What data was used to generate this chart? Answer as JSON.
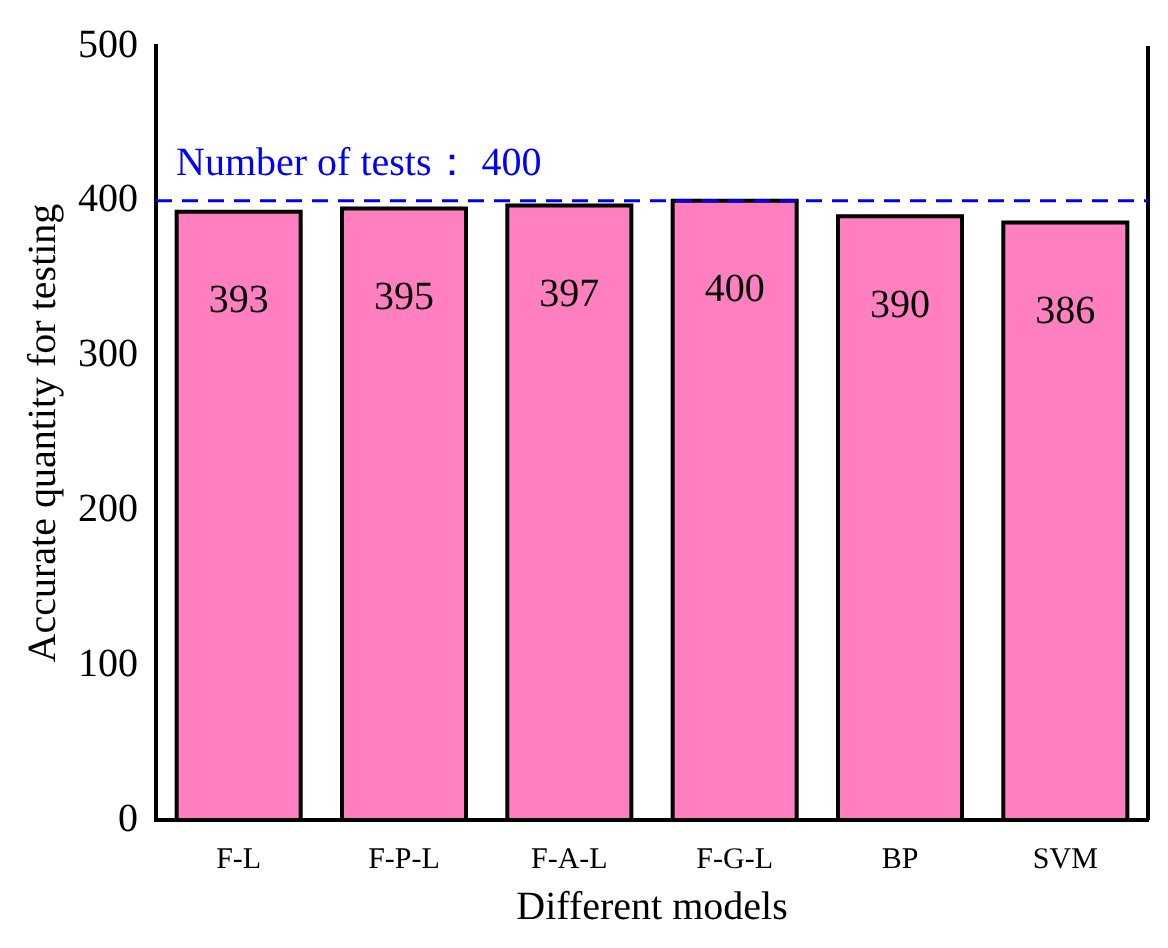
{
  "chart_data": {
    "type": "bar",
    "xlabel": "Different models",
    "ylabel": "Accurate quantity for testing",
    "categories": [
      "F-L",
      "F-P-L",
      "F-A-L",
      "F-G-L",
      "BP",
      "SVM"
    ],
    "values": [
      393,
      395,
      397,
      400,
      390,
      386
    ],
    "color": "#ff7fc0",
    "ylim": [
      0,
      500
    ],
    "yticks": [
      0,
      100,
      200,
      300,
      400,
      500
    ],
    "grid": false,
    "data_labels": true,
    "ref_lines": [
      {
        "axis": "y",
        "value": 400,
        "label": "Number of tests： 400",
        "color": "#0000ff",
        "line_style": "dashed"
      }
    ]
  }
}
